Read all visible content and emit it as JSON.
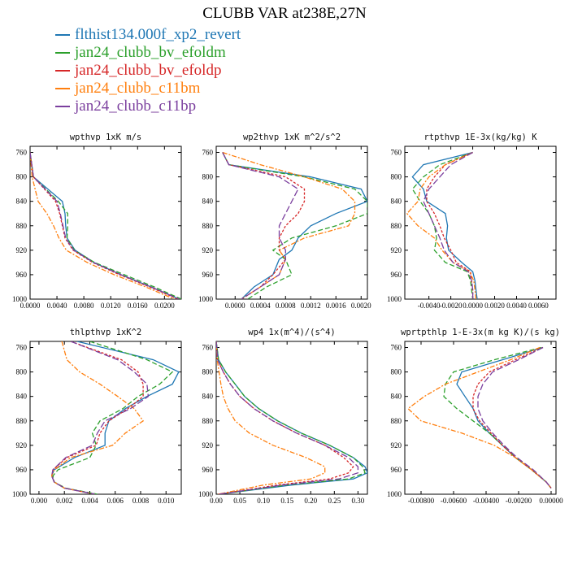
{
  "title": "CLUBB VAR at238E,27N",
  "legend": [
    {
      "name": "flthist134.000f_xp2_revert",
      "color": "#1f77b4",
      "dash": "none"
    },
    {
      "name": "jan24_clubb_bv_efoldm",
      "color": "#2ca02c",
      "dash": "6,3"
    },
    {
      "name": "jan24_clubb_bv_efoldp",
      "color": "#d62728",
      "dash": "3,2"
    },
    {
      "name": "jan24_clubb_c11bm",
      "color": "#ff7f0e",
      "dash": "6,2,2,2"
    },
    {
      "name": "jan24_clubb_c11bp",
      "color": "#7b3f9e",
      "dash": "8,3"
    }
  ],
  "chart_data": [
    {
      "type": "line",
      "title": "wpthvp  1xK m/s",
      "xlim": [
        0.0,
        0.0225
      ],
      "ylim": [
        750,
        1000
      ],
      "y_inverted": true,
      "xticks": [
        0.0,
        0.004,
        0.008,
        0.012,
        0.016,
        0.02
      ],
      "xtick_labels": [
        "0.0000",
        "0.0040",
        "0.0080",
        "0.0120",
        "0.0160",
        "0.0200"
      ],
      "yticks": [
        760,
        800,
        840,
        880,
        920,
        960,
        1000
      ],
      "y": [
        760,
        800,
        840,
        860,
        880,
        900,
        920,
        940,
        960,
        980,
        1000
      ],
      "series": [
        {
          "x": [
            0.0,
            0.0005,
            0.0048,
            0.0052,
            0.0053,
            0.0055,
            0.0067,
            0.0095,
            0.0135,
            0.018,
            0.0222
          ]
        },
        {
          "x": [
            0.0,
            0.0005,
            0.0042,
            0.0056,
            0.0056,
            0.0055,
            0.0066,
            0.0096,
            0.014,
            0.0185,
            0.0225
          ]
        },
        {
          "x": [
            0.0,
            0.0005,
            0.0038,
            0.0044,
            0.0048,
            0.0052,
            0.0064,
            0.0093,
            0.0133,
            0.0178,
            0.022
          ]
        },
        {
          "x": [
            0.0,
            0.0003,
            0.0012,
            0.0025,
            0.0035,
            0.0043,
            0.0054,
            0.0085,
            0.0125,
            0.0172,
            0.0215
          ]
        },
        {
          "x": [
            0.0,
            0.0005,
            0.004,
            0.0045,
            0.0049,
            0.0053,
            0.0065,
            0.0094,
            0.0135,
            0.018,
            0.0222
          ]
        }
      ]
    },
    {
      "type": "line",
      "title": "wp2thvp  1xK m^2/s^2",
      "xlim": [
        -0.0003,
        0.0021
      ],
      "ylim": [
        750,
        1000
      ],
      "y_inverted": true,
      "xticks": [
        0.0,
        0.0004,
        0.0008,
        0.0012,
        0.0016,
        0.002
      ],
      "xtick_labels": [
        "0.0000",
        "0.0004",
        "0.0008",
        "0.0012",
        "0.0016",
        "0.0020"
      ],
      "yticks": [
        760,
        800,
        840,
        880,
        920,
        960,
        1000
      ],
      "y": [
        760,
        780,
        800,
        820,
        840,
        860,
        880,
        900,
        920,
        935,
        960,
        980,
        1000
      ],
      "series": [
        {
          "x": [
            -0.0002,
            -0.0001,
            0.0012,
            0.002,
            0.0021,
            0.0016,
            0.0012,
            0.001,
            0.0009,
            0.0007,
            0.0006,
            0.0003,
            0.0001
          ]
        },
        {
          "x": [
            -0.0002,
            -0.0001,
            0.0011,
            0.0019,
            0.0021,
            0.0021,
            0.0016,
            0.0009,
            0.0006,
            0.0008,
            0.0009,
            0.0005,
            0.0002
          ]
        },
        {
          "x": [
            -0.0002,
            -0.0001,
            0.0008,
            0.0011,
            0.0011,
            0.001,
            0.0008,
            0.0007,
            0.0007,
            0.0008,
            0.0006,
            0.0004,
            0.0001
          ]
        },
        {
          "x": [
            -0.0002,
            0.0004,
            0.0011,
            0.0017,
            0.0019,
            0.0019,
            0.0018,
            0.0011,
            0.0007,
            0.0008,
            0.0007,
            0.0004,
            0.0001
          ]
        },
        {
          "x": [
            -0.0002,
            -0.0001,
            0.0007,
            0.001,
            0.0009,
            0.0008,
            0.0007,
            0.0007,
            0.0008,
            0.0008,
            0.0007,
            0.0004,
            0.0001
          ]
        }
      ]
    },
    {
      "type": "line",
      "title": "rtpthvp  1E-3x(kg/kg) K",
      "xlim": [
        -0.0062,
        0.0076
      ],
      "ylim": [
        750,
        1000
      ],
      "y_inverted": true,
      "xticks": [
        -0.004,
        -0.002,
        0.0,
        0.002,
        0.004,
        0.006
      ],
      "xtick_labels": [
        "-0.0040",
        "-0.0020",
        "0.0000",
        "0.0020",
        "0.0040",
        "0.0060"
      ],
      "yticks": [
        760,
        800,
        840,
        880,
        920,
        960,
        1000
      ],
      "y": [
        760,
        780,
        800,
        820,
        840,
        860,
        880,
        900,
        920,
        940,
        955,
        970,
        985,
        1000
      ],
      "series": [
        {
          "x": [
            0.0,
            -0.0045,
            -0.0055,
            -0.0045,
            -0.0042,
            -0.0025,
            -0.0023,
            -0.0024,
            -0.0022,
            -0.001,
            0.0,
            0.0002,
            0.0003,
            0.0004
          ]
        },
        {
          "x": [
            0.0,
            -0.003,
            -0.0045,
            -0.0055,
            -0.0048,
            -0.004,
            -0.0035,
            -0.0033,
            -0.0035,
            -0.0025,
            -0.0005,
            -0.0002,
            -0.0001,
            0.0
          ]
        },
        {
          "x": [
            0.0,
            -0.0025,
            -0.0035,
            -0.0042,
            -0.0042,
            -0.0035,
            -0.003,
            -0.0026,
            -0.002,
            -0.0015,
            -0.0002,
            -0.0001,
            0.0,
            0.0
          ]
        },
        {
          "x": [
            0.0,
            -0.0025,
            -0.004,
            -0.0048,
            -0.005,
            -0.006,
            -0.005,
            -0.0035,
            -0.0028,
            -0.0018,
            -0.0003,
            0.0001,
            0.0002,
            0.0003
          ]
        },
        {
          "x": [
            0.0,
            -0.002,
            -0.003,
            -0.004,
            -0.0045,
            -0.004,
            -0.0035,
            -0.003,
            -0.0026,
            -0.0018,
            -0.0004,
            -0.0001,
            0.0,
            0.0
          ]
        }
      ]
    },
    {
      "type": "line",
      "title": "thlpthvp  1xK^2",
      "xlim": [
        -0.0007,
        0.0112
      ],
      "ylim": [
        750,
        1000
      ],
      "y_inverted": true,
      "xticks": [
        0.0,
        0.002,
        0.004,
        0.006,
        0.008,
        0.01
      ],
      "xtick_labels": [
        "0.000",
        "0.002",
        "0.004",
        "0.006",
        "0.008",
        "0.010"
      ],
      "yticks": [
        760,
        800,
        840,
        880,
        920,
        960,
        1000
      ],
      "y": [
        750,
        780,
        800,
        820,
        840,
        860,
        880,
        900,
        920,
        940,
        960,
        970,
        980,
        990,
        1000
      ],
      "series": [
        {
          "x": [
            0.003,
            0.009,
            0.011,
            0.0105,
            0.0085,
            0.0068,
            0.0055,
            0.0052,
            0.0052,
            0.0028,
            0.0012,
            0.001,
            0.0012,
            0.002,
            0.0045
          ]
        },
        {
          "x": [
            0.004,
            0.0085,
            0.0105,
            0.0095,
            0.0078,
            0.0066,
            0.0048,
            0.0042,
            0.0045,
            0.004,
            0.0015,
            0.0011,
            0.0012,
            0.0021,
            0.0046
          ]
        },
        {
          "x": [
            0.0025,
            0.0065,
            0.0078,
            0.0082,
            0.0082,
            0.007,
            0.0055,
            0.0048,
            0.0045,
            0.0022,
            0.0011,
            0.001,
            0.0012,
            0.002,
            0.0044
          ]
        },
        {
          "x": [
            0.0018,
            0.0022,
            0.0032,
            0.0048,
            0.0062,
            0.0075,
            0.0082,
            0.0068,
            0.0058,
            0.0025,
            0.0012,
            0.001,
            0.0012,
            0.002,
            0.0044
          ]
        },
        {
          "x": [
            0.0025,
            0.0062,
            0.0075,
            0.0085,
            0.0086,
            0.0072,
            0.0052,
            0.0046,
            0.0042,
            0.0021,
            0.0011,
            0.001,
            0.0012,
            0.002,
            0.0044
          ]
        }
      ]
    },
    {
      "type": "line",
      "title": "wp4  1x(m^4)/(s^4)",
      "xlim": [
        0.0,
        0.32
      ],
      "ylim": [
        750,
        1000
      ],
      "y_inverted": true,
      "xticks": [
        0.0,
        0.05,
        0.1,
        0.15,
        0.2,
        0.25,
        0.3
      ],
      "xtick_labels": [
        "0.00",
        "0.05",
        "0.10",
        "0.15",
        "0.20",
        "0.25",
        "0.30"
      ],
      "yticks": [
        760,
        800,
        840,
        880,
        920,
        960,
        1000
      ],
      "y": [
        750,
        780,
        800,
        820,
        840,
        860,
        880,
        900,
        920,
        940,
        955,
        965,
        975,
        985,
        1000
      ],
      "series": [
        {
          "x": [
            0.0,
            0.005,
            0.02,
            0.04,
            0.06,
            0.09,
            0.13,
            0.18,
            0.24,
            0.29,
            0.315,
            0.32,
            0.29,
            0.16,
            0.005
          ]
        },
        {
          "x": [
            0.0,
            0.005,
            0.02,
            0.04,
            0.06,
            0.09,
            0.13,
            0.18,
            0.24,
            0.29,
            0.31,
            0.315,
            0.28,
            0.15,
            0.005
          ]
        },
        {
          "x": [
            0.0,
            0.003,
            0.015,
            0.03,
            0.05,
            0.08,
            0.12,
            0.17,
            0.23,
            0.27,
            0.29,
            0.28,
            0.24,
            0.13,
            0.005
          ]
        },
        {
          "x": [
            0.0,
            0.002,
            0.006,
            0.01,
            0.015,
            0.025,
            0.04,
            0.07,
            0.12,
            0.19,
            0.23,
            0.23,
            0.2,
            0.1,
            0.004
          ]
        },
        {
          "x": [
            0.0,
            0.003,
            0.015,
            0.03,
            0.05,
            0.08,
            0.12,
            0.17,
            0.23,
            0.28,
            0.3,
            0.3,
            0.26,
            0.14,
            0.005
          ]
        }
      ]
    },
    {
      "type": "line",
      "title": "wprtpthlp  1-E-3x(m kg K)/(s kg)",
      "xlim": [
        -0.009,
        0.0003
      ],
      "ylim": [
        750,
        1000
      ],
      "y_inverted": true,
      "xticks": [
        -0.008,
        -0.006,
        -0.004,
        -0.002,
        0.0
      ],
      "xtick_labels": [
        "-0.00800",
        "-0.00600",
        "-0.00400",
        "-0.00200",
        "0.00000"
      ],
      "yticks": [
        760,
        800,
        840,
        880,
        920,
        960,
        1000
      ],
      "y": [
        760,
        780,
        800,
        820,
        840,
        860,
        880,
        900,
        920,
        940,
        960,
        980,
        990
      ],
      "series": [
        {
          "x": [
            -0.0005,
            -0.003,
            -0.0055,
            -0.0058,
            -0.0053,
            -0.0048,
            -0.0045,
            -0.0038,
            -0.003,
            -0.0022,
            -0.0012,
            -0.0003,
            0.0
          ]
        },
        {
          "x": [
            -0.0006,
            -0.0035,
            -0.006,
            -0.0065,
            -0.0066,
            -0.0058,
            -0.0048,
            -0.0038,
            -0.003,
            -0.0022,
            -0.0012,
            -0.0003,
            0.0
          ]
        },
        {
          "x": [
            -0.0005,
            -0.0022,
            -0.0038,
            -0.0045,
            -0.0048,
            -0.0048,
            -0.0044,
            -0.0037,
            -0.003,
            -0.0022,
            -0.0012,
            -0.0003,
            0.0
          ]
        },
        {
          "x": [
            -0.0007,
            -0.0025,
            -0.0045,
            -0.0065,
            -0.0078,
            -0.0088,
            -0.008,
            -0.0055,
            -0.0035,
            -0.0022,
            -0.0012,
            -0.0003,
            0.0
          ]
        },
        {
          "x": [
            -0.0005,
            -0.002,
            -0.0036,
            -0.0042,
            -0.0045,
            -0.0045,
            -0.0042,
            -0.0036,
            -0.0029,
            -0.0021,
            -0.0011,
            -0.0003,
            0.0
          ]
        }
      ]
    }
  ]
}
